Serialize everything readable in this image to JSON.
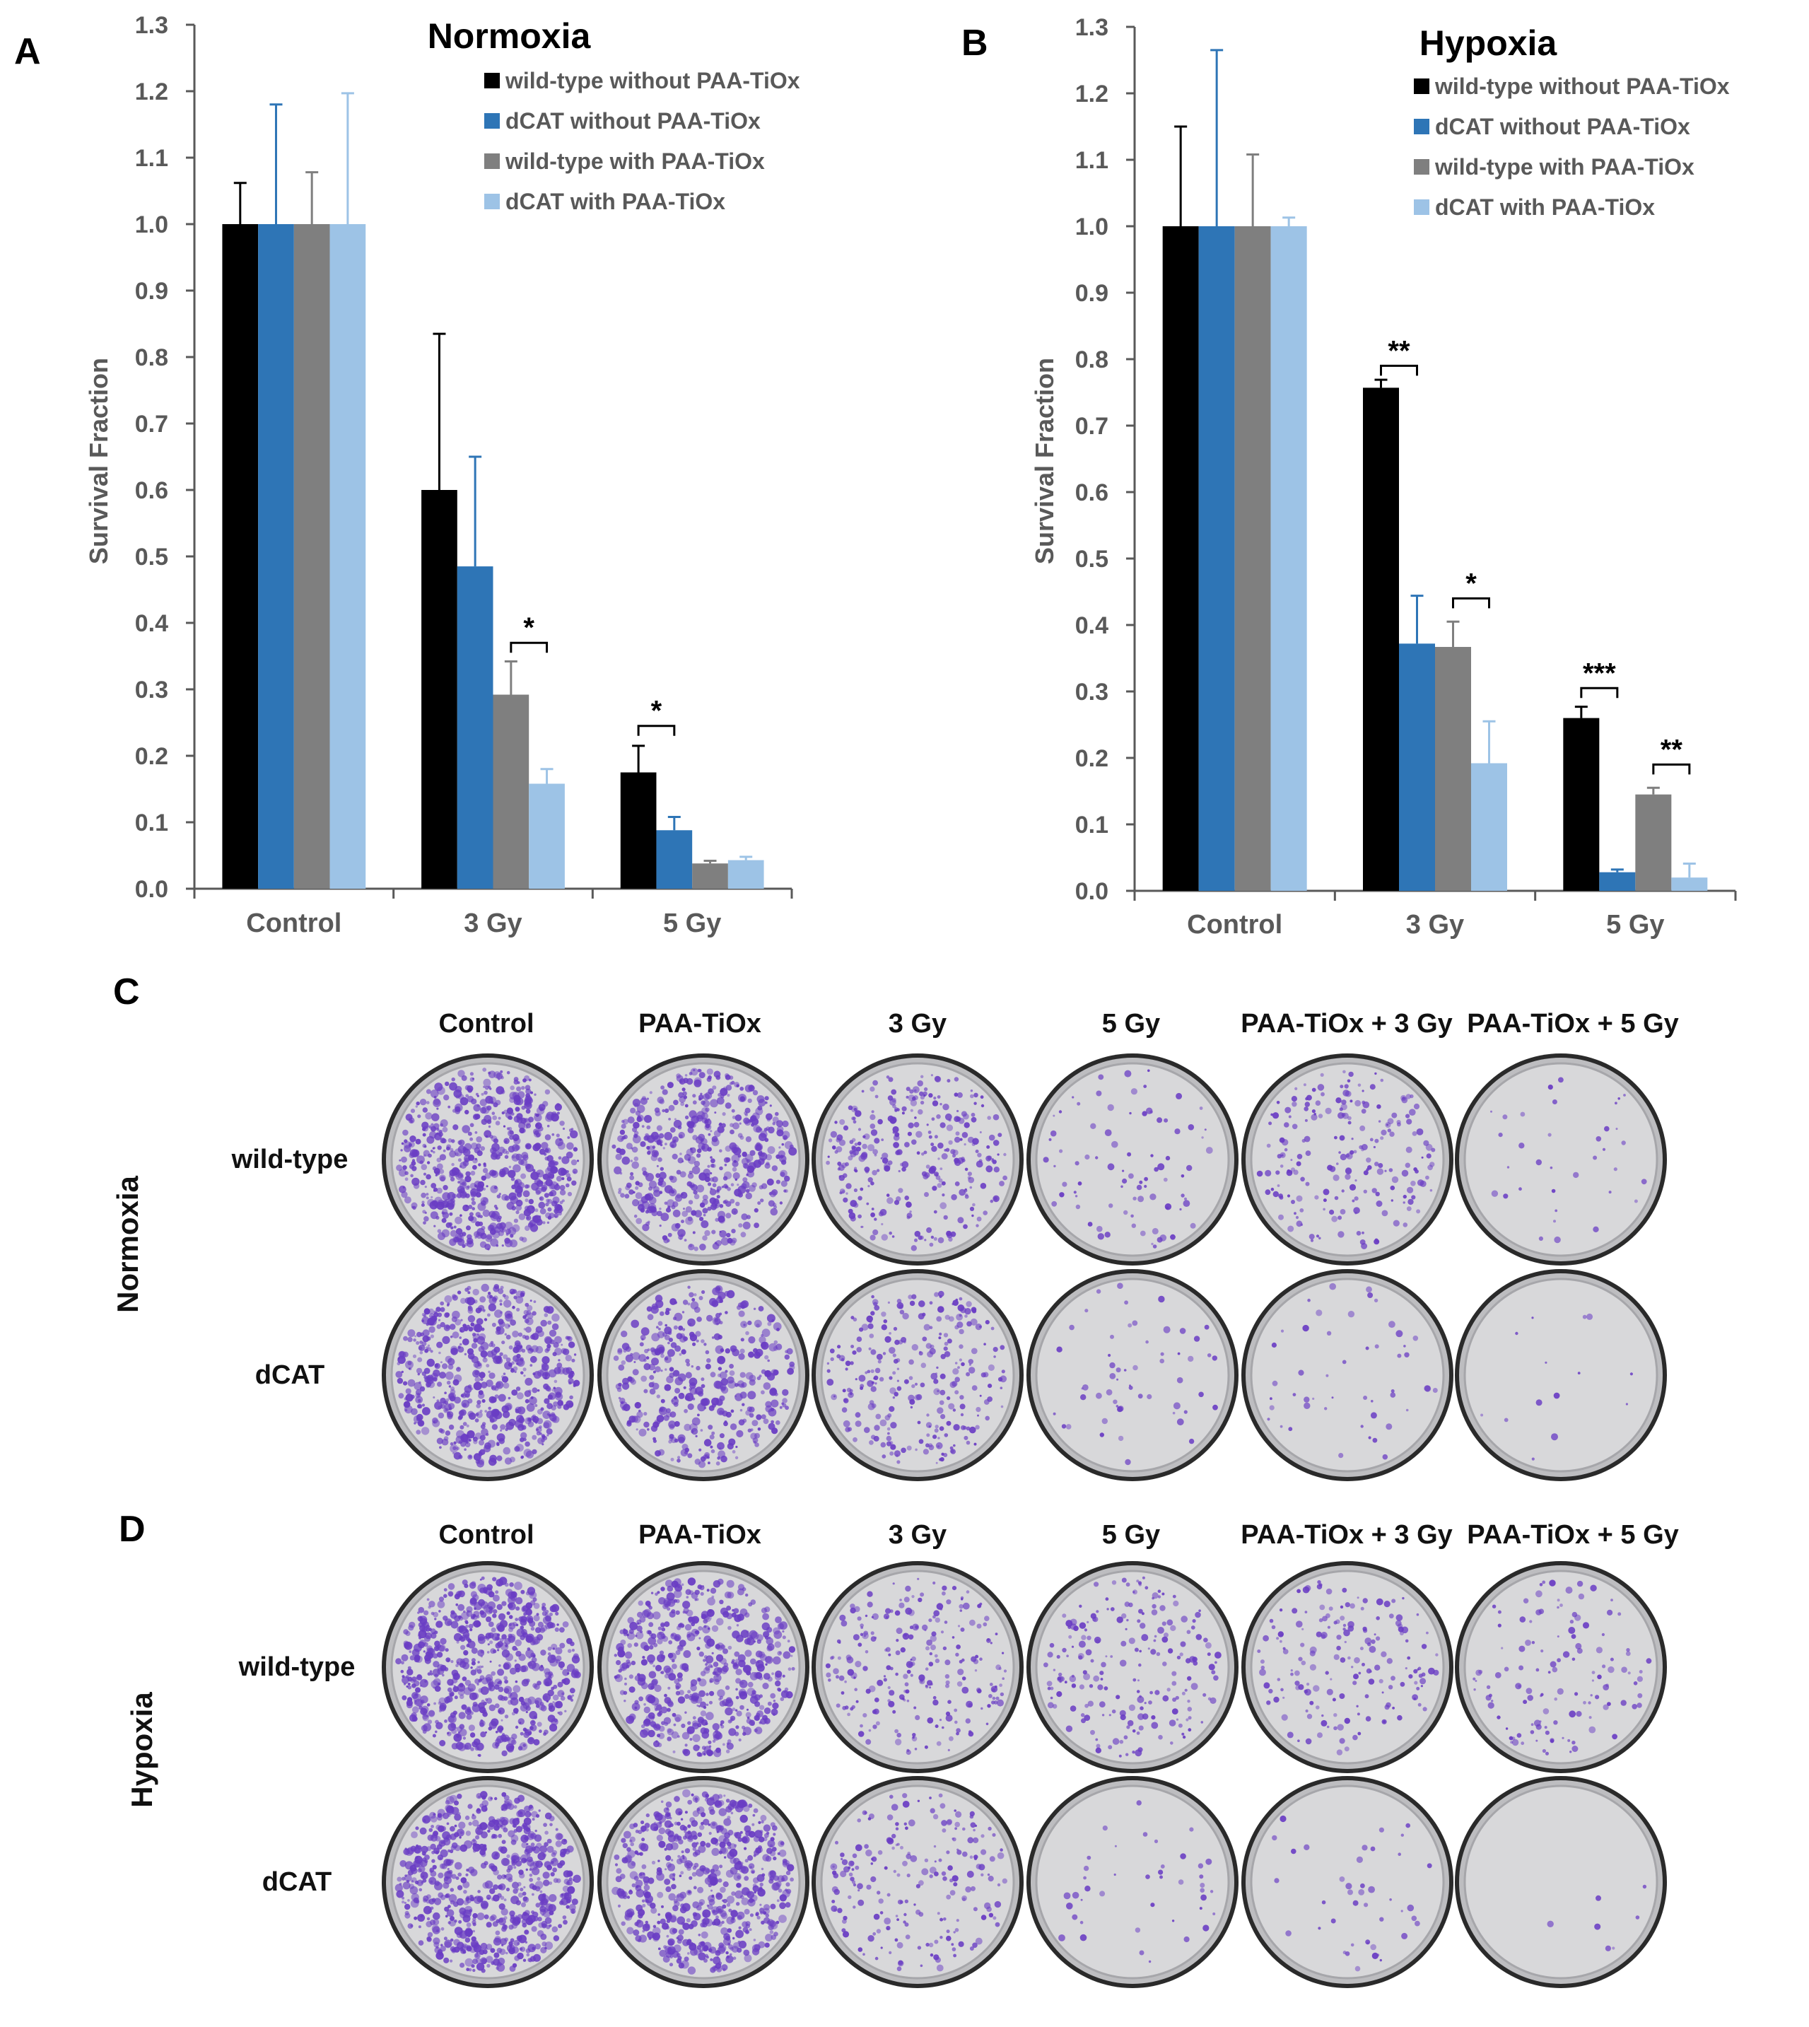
{
  "panels": {
    "a": "A",
    "b": "B",
    "c": "C",
    "d": "D"
  },
  "chart_data": [
    {
      "type": "bar",
      "title": "Normoxia",
      "ylabel": "Survival Fraction",
      "xlabel": "",
      "ylim": [
        0,
        1.3
      ],
      "yticks": [
        "0.0",
        "0.1",
        "0.2",
        "0.3",
        "0.4",
        "0.5",
        "0.6",
        "0.7",
        "0.8",
        "0.9",
        "1.0",
        "1.1",
        "1.2",
        "1.3"
      ],
      "categories": [
        "Control",
        "3 Gy",
        "5 Gy"
      ],
      "legend_position": "top-right",
      "series": [
        {
          "name": "wild-type without PAA-TiOx",
          "color": "#000000",
          "values": [
            1.0,
            0.6,
            0.175
          ],
          "errors": [
            0.062,
            0.235,
            0.04
          ]
        },
        {
          "name": "dCAT without PAA-TiOx",
          "color": "#2E75B6",
          "values": [
            1.0,
            0.485,
            0.088
          ],
          "errors": [
            0.18,
            0.165,
            0.02
          ]
        },
        {
          "name": "wild-type with PAA-TiOx",
          "color": "#7F7F7F",
          "values": [
            1.0,
            0.292,
            0.038
          ],
          "errors": [
            0.078,
            0.05,
            0.004
          ]
        },
        {
          "name": "dCAT with PAA-TiOx",
          "color": "#9DC3E6",
          "values": [
            1.0,
            0.158,
            0.043
          ],
          "errors": [
            0.197,
            0.022,
            0.005
          ]
        }
      ],
      "significance": [
        {
          "label": "*",
          "category": "3 Gy",
          "between": [
            2,
            3
          ],
          "y": 0.37
        },
        {
          "label": "*",
          "category": "5 Gy",
          "between": [
            0,
            1
          ],
          "y": 0.245
        }
      ]
    },
    {
      "type": "bar",
      "title": "Hypoxia",
      "ylabel": "Survival Fraction",
      "xlabel": "",
      "ylim": [
        0,
        1.3
      ],
      "yticks": [
        "0.0",
        "0.1",
        "0.2",
        "0.3",
        "0.4",
        "0.5",
        "0.6",
        "0.7",
        "0.8",
        "0.9",
        "1.0",
        "1.1",
        "1.2",
        "1.3"
      ],
      "categories": [
        "Control",
        "3 Gy",
        "5 Gy"
      ],
      "legend_position": "top-right",
      "series": [
        {
          "name": "wild-type without PAA-TiOx",
          "color": "#000000",
          "values": [
            1.0,
            0.757,
            0.26
          ],
          "errors": [
            0.15,
            0.012,
            0.017
          ]
        },
        {
          "name": "dCAT without PAA-TiOx",
          "color": "#2E75B6",
          "values": [
            1.0,
            0.372,
            0.028
          ],
          "errors": [
            0.265,
            0.072,
            0.004
          ]
        },
        {
          "name": "wild-type with PAA-TiOx",
          "color": "#7F7F7F",
          "values": [
            1.0,
            0.367,
            0.145
          ],
          "errors": [
            0.108,
            0.038,
            0.01
          ]
        },
        {
          "name": "dCAT with PAA-TiOx",
          "color": "#9DC3E6",
          "values": [
            1.0,
            0.192,
            0.02
          ],
          "errors": [
            0.013,
            0.063,
            0.021
          ]
        }
      ],
      "significance": [
        {
          "label": "**",
          "category": "3 Gy",
          "between": [
            0,
            1
          ],
          "y": 0.79
        },
        {
          "label": "*",
          "category": "3 Gy",
          "between": [
            2,
            3
          ],
          "y": 0.44
        },
        {
          "label": "***",
          "category": "5 Gy",
          "between": [
            0,
            1
          ],
          "y": 0.305
        },
        {
          "label": "**",
          "category": "5 Gy",
          "between": [
            2,
            3
          ],
          "y": 0.19
        }
      ]
    }
  ],
  "plates": {
    "columns": [
      "Control",
      "PAA-TiOx",
      "3 Gy",
      "5 Gy",
      "PAA-TiOx + 3 Gy",
      "PAA-TiOx + 5 Gy"
    ],
    "rows": [
      "wild-type",
      "dCAT"
    ],
    "groups": [
      {
        "label": "Normoxia",
        "density": [
          [
            0.95,
            0.75,
            0.45,
            0.12,
            0.3,
            0.05
          ],
          [
            0.9,
            0.6,
            0.4,
            0.08,
            0.07,
            0.02
          ]
        ]
      },
      {
        "label": "Hypoxia",
        "density": [
          [
            1.0,
            0.8,
            0.35,
            0.3,
            0.25,
            0.18
          ],
          [
            1.0,
            0.9,
            0.3,
            0.06,
            0.06,
            0.01
          ]
        ]
      }
    ],
    "stain_color": "#6A3DC4",
    "plate_color": "#D8D8DA"
  }
}
